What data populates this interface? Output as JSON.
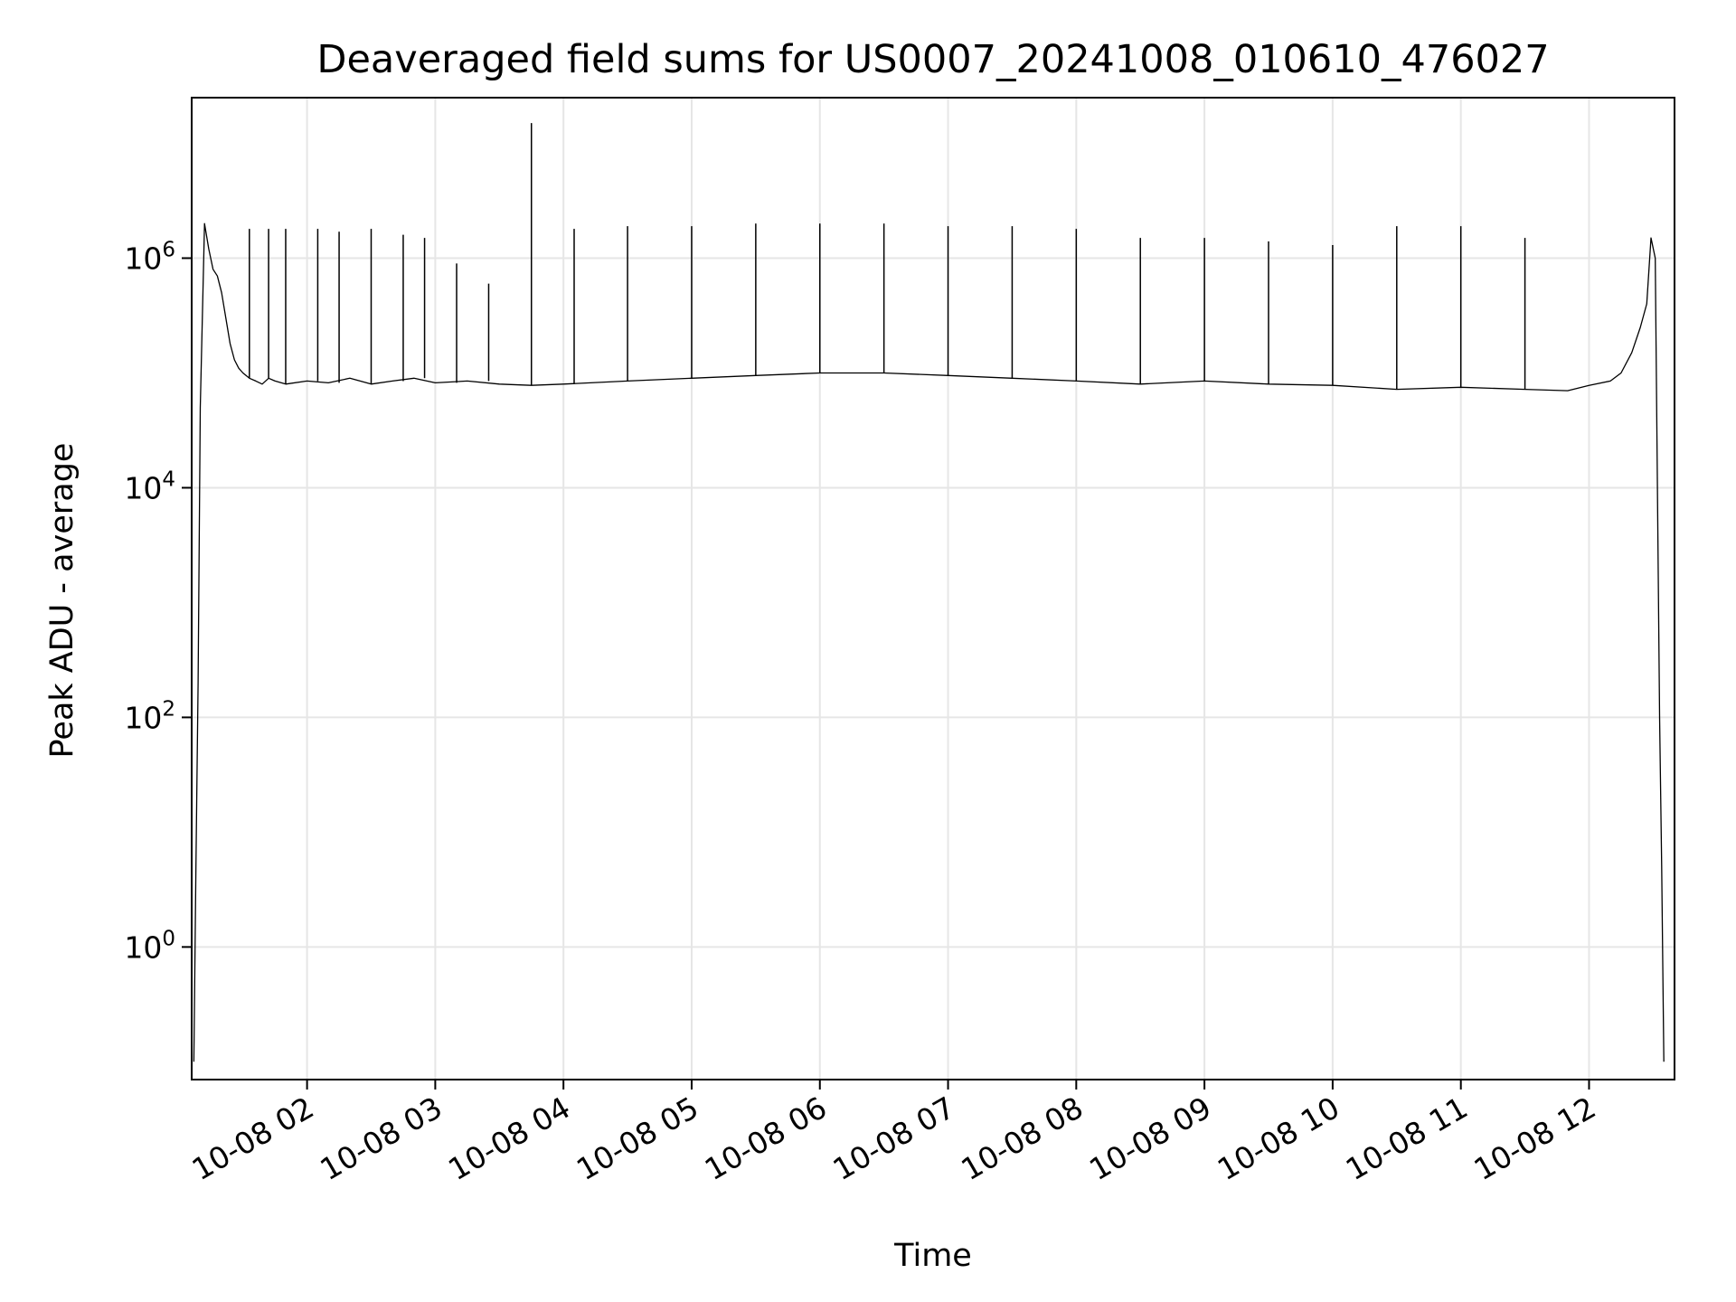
{
  "chart_data": {
    "type": "line",
    "title": "Deaveraged field sums for US0007_20241008_010610_476027",
    "xlabel": "Time",
    "ylabel": "Peak ADU - average",
    "yscale": "log",
    "grid": true,
    "xlim": [
      "2024-10-08 01:06",
      "2024-10-08 12:40"
    ],
    "ylim": [
      0.07,
      25000000
    ],
    "x_ticks": [
      {
        "t": "2024-10-08 02:00",
        "label": "10-08 02"
      },
      {
        "t": "2024-10-08 03:00",
        "label": "10-08 03"
      },
      {
        "t": "2024-10-08 04:00",
        "label": "10-08 04"
      },
      {
        "t": "2024-10-08 05:00",
        "label": "10-08 05"
      },
      {
        "t": "2024-10-08 06:00",
        "label": "10-08 06"
      },
      {
        "t": "2024-10-08 07:00",
        "label": "10-08 07"
      },
      {
        "t": "2024-10-08 08:00",
        "label": "10-08 08"
      },
      {
        "t": "2024-10-08 09:00",
        "label": "10-08 09"
      },
      {
        "t": "2024-10-08 10:00",
        "label": "10-08 10"
      },
      {
        "t": "2024-10-08 11:00",
        "label": "10-08 11"
      },
      {
        "t": "2024-10-08 12:00",
        "label": "10-08 12"
      }
    ],
    "y_ticks": [
      {
        "value": 1,
        "base": "10",
        "exp": "0"
      },
      {
        "value": 100,
        "base": "10",
        "exp": "2"
      },
      {
        "value": 10000,
        "base": "10",
        "exp": "4"
      },
      {
        "value": 1000000,
        "base": "10",
        "exp": "6"
      }
    ],
    "series": [
      {
        "color": "#000000",
        "x": [
          "2024-10-08 01:07",
          "2024-10-08 01:08",
          "2024-10-08 01:09",
          "2024-10-08 01:10",
          "2024-10-08 01:12",
          "2024-10-08 01:14",
          "2024-10-08 01:16",
          "2024-10-08 01:18",
          "2024-10-08 01:20",
          "2024-10-08 01:22",
          "2024-10-08 01:24",
          "2024-10-08 01:26",
          "2024-10-08 01:28",
          "2024-10-08 01:30",
          "2024-10-08 01:33",
          "2024-10-08 01:36",
          "2024-10-08 01:39",
          "2024-10-08 01:42",
          "2024-10-08 01:45",
          "2024-10-08 01:50",
          "2024-10-08 02:00",
          "2024-10-08 02:10",
          "2024-10-08 02:20",
          "2024-10-08 02:30",
          "2024-10-08 02:40",
          "2024-10-08 02:50",
          "2024-10-08 03:00",
          "2024-10-08 03:15",
          "2024-10-08 03:30",
          "2024-10-08 03:45",
          "2024-10-08 04:00",
          "2024-10-08 04:30",
          "2024-10-08 05:00",
          "2024-10-08 05:30",
          "2024-10-08 06:00",
          "2024-10-08 06:30",
          "2024-10-08 07:00",
          "2024-10-08 07:30",
          "2024-10-08 08:00",
          "2024-10-08 08:30",
          "2024-10-08 09:00",
          "2024-10-08 09:30",
          "2024-10-08 10:00",
          "2024-10-08 10:30",
          "2024-10-08 11:00",
          "2024-10-08 11:30",
          "2024-10-08 11:50",
          "2024-10-08 12:00",
          "2024-10-08 12:10",
          "2024-10-08 12:15",
          "2024-10-08 12:20",
          "2024-10-08 12:24",
          "2024-10-08 12:27",
          "2024-10-08 12:29",
          "2024-10-08 12:31",
          "2024-10-08 12:33",
          "2024-10-08 12:34",
          "2024-10-08 12:35"
        ],
        "y": [
          0.1,
          5,
          200,
          50000,
          2000000,
          1200000,
          800000,
          700000,
          500000,
          300000,
          180000,
          130000,
          110000,
          100000,
          90000,
          85000,
          80000,
          90000,
          85000,
          80000,
          85000,
          82000,
          90000,
          80000,
          85000,
          90000,
          82000,
          85000,
          80000,
          78000,
          80000,
          85000,
          90000,
          95000,
          100000,
          100000,
          95000,
          90000,
          85000,
          80000,
          85000,
          80000,
          78000,
          72000,
          75000,
          72000,
          70000,
          78000,
          85000,
          100000,
          150000,
          250000,
          400000,
          1500000,
          1000000,
          100,
          5,
          0.1
        ],
        "bursts": [
          {
            "x": "2024-10-08 01:33",
            "y": 1800000
          },
          {
            "x": "2024-10-08 01:42",
            "y": 1800000
          },
          {
            "x": "2024-10-08 01:50",
            "y": 1800000
          },
          {
            "x": "2024-10-08 02:05",
            "y": 1800000
          },
          {
            "x": "2024-10-08 02:15",
            "y": 1700000
          },
          {
            "x": "2024-10-08 02:30",
            "y": 1800000
          },
          {
            "x": "2024-10-08 02:45",
            "y": 1600000
          },
          {
            "x": "2024-10-08 02:55",
            "y": 1500000
          },
          {
            "x": "2024-10-08 03:10",
            "y": 900000
          },
          {
            "x": "2024-10-08 03:25",
            "y": 600000
          },
          {
            "x": "2024-10-08 03:45",
            "y": 15000000
          },
          {
            "x": "2024-10-08 04:05",
            "y": 1800000
          },
          {
            "x": "2024-10-08 04:30",
            "y": 1900000
          },
          {
            "x": "2024-10-08 05:00",
            "y": 1900000
          },
          {
            "x": "2024-10-08 05:30",
            "y": 2000000
          },
          {
            "x": "2024-10-08 06:00",
            "y": 2000000
          },
          {
            "x": "2024-10-08 06:30",
            "y": 2000000
          },
          {
            "x": "2024-10-08 07:00",
            "y": 1900000
          },
          {
            "x": "2024-10-08 07:30",
            "y": 1900000
          },
          {
            "x": "2024-10-08 08:00",
            "y": 1800000
          },
          {
            "x": "2024-10-08 08:30",
            "y": 1500000
          },
          {
            "x": "2024-10-08 09:00",
            "y": 1500000
          },
          {
            "x": "2024-10-08 09:30",
            "y": 1400000
          },
          {
            "x": "2024-10-08 10:00",
            "y": 1300000
          },
          {
            "x": "2024-10-08 10:30",
            "y": 1900000
          },
          {
            "x": "2024-10-08 11:00",
            "y": 1900000
          },
          {
            "x": "2024-10-08 11:30",
            "y": 1500000
          }
        ]
      }
    ]
  }
}
